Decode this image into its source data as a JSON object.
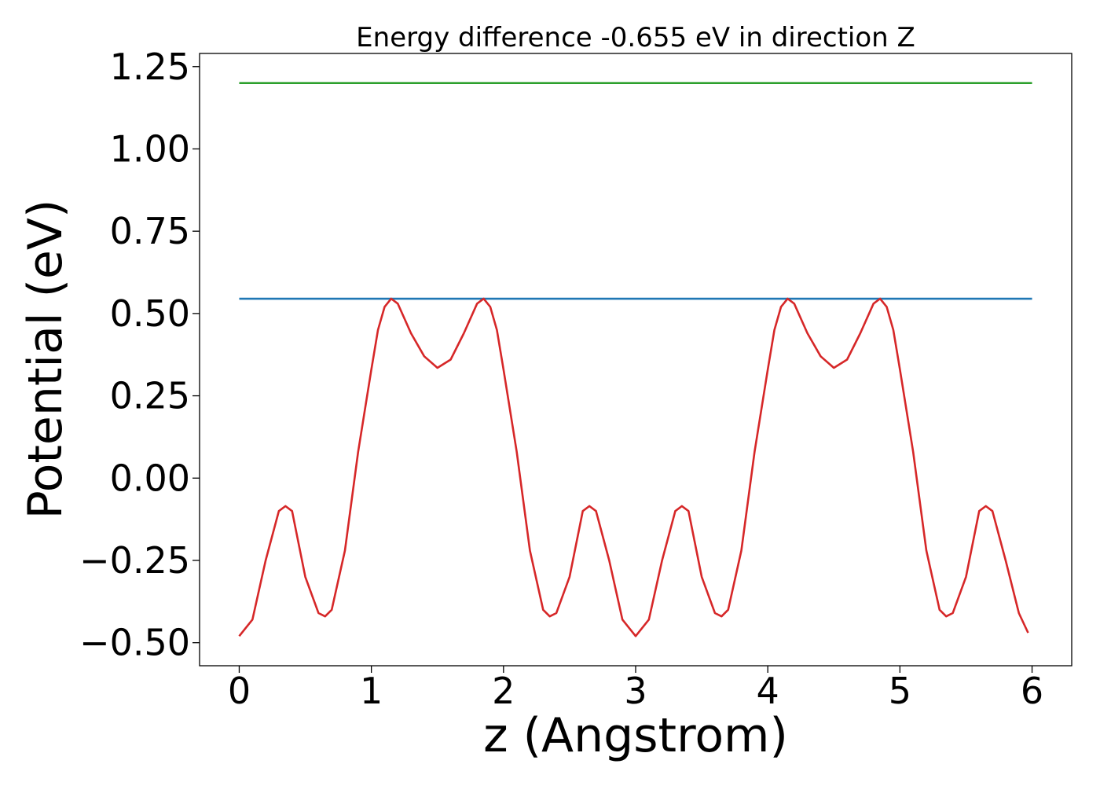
{
  "chart_data": {
    "type": "line",
    "title": "Energy difference -0.655 eV in direction Z",
    "xlabel": "z (Angstrom)",
    "ylabel": "Potential (eV)",
    "xlim": [
      -0.3,
      6.3
    ],
    "ylim": [
      -0.57,
      1.29
    ],
    "xticks": [
      0,
      1,
      2,
      3,
      4,
      5,
      6
    ],
    "xtick_labels": [
      "0",
      "1",
      "2",
      "3",
      "4",
      "5",
      "6"
    ],
    "yticks": [
      -0.5,
      -0.25,
      0.0,
      0.25,
      0.5,
      0.75,
      1.0,
      1.25
    ],
    "ytick_labels": [
      "−0.50",
      "−0.25",
      "0.00",
      "0.25",
      "0.50",
      "0.75",
      "1.00",
      "1.25"
    ],
    "grid": false,
    "series": [
      {
        "color": "#2ca02c",
        "x": [
          0,
          6
        ],
        "y": [
          1.2,
          1.2
        ]
      },
      {
        "color": "#1f77b4",
        "x": [
          0,
          6
        ],
        "y": [
          0.545,
          0.545
        ]
      },
      {
        "color": "#d62728",
        "x": [
          0.0,
          0.1,
          0.2,
          0.3,
          0.35,
          0.4,
          0.5,
          0.6,
          0.65,
          0.7,
          0.8,
          0.9,
          1.0,
          1.05,
          1.1,
          1.15,
          1.2,
          1.3,
          1.4,
          1.5,
          1.6,
          1.7,
          1.8,
          1.85,
          1.9,
          1.95,
          2.0,
          2.1,
          2.2,
          2.3,
          2.35,
          2.4,
          2.5,
          2.6,
          2.65,
          2.7,
          2.8,
          2.9,
          3.0,
          3.1,
          3.2,
          3.3,
          3.35,
          3.4,
          3.5,
          3.6,
          3.65,
          3.7,
          3.8,
          3.9,
          4.0,
          4.05,
          4.1,
          4.15,
          4.2,
          4.3,
          4.4,
          4.5,
          4.6,
          4.7,
          4.8,
          4.85,
          4.9,
          4.95,
          5.0,
          5.1,
          5.2,
          5.3,
          5.35,
          5.4,
          5.5,
          5.6,
          5.65,
          5.7,
          5.8,
          5.9,
          5.97
        ],
        "y": [
          -0.48,
          -0.43,
          -0.25,
          -0.1,
          -0.085,
          -0.1,
          -0.3,
          -0.41,
          -0.42,
          -0.4,
          -0.22,
          0.08,
          0.33,
          0.45,
          0.52,
          0.545,
          0.53,
          0.44,
          0.37,
          0.335,
          0.36,
          0.44,
          0.53,
          0.545,
          0.52,
          0.45,
          0.33,
          0.08,
          -0.22,
          -0.4,
          -0.42,
          -0.41,
          -0.3,
          -0.1,
          -0.085,
          -0.1,
          -0.25,
          -0.43,
          -0.48,
          -0.43,
          -0.25,
          -0.1,
          -0.085,
          -0.1,
          -0.3,
          -0.41,
          -0.42,
          -0.4,
          -0.22,
          0.08,
          0.33,
          0.45,
          0.52,
          0.545,
          0.53,
          0.44,
          0.37,
          0.335,
          0.36,
          0.44,
          0.53,
          0.545,
          0.52,
          0.45,
          0.33,
          0.08,
          -0.22,
          -0.4,
          -0.42,
          -0.41,
          -0.3,
          -0.1,
          -0.085,
          -0.1,
          -0.25,
          -0.41,
          -0.47
        ]
      }
    ]
  }
}
